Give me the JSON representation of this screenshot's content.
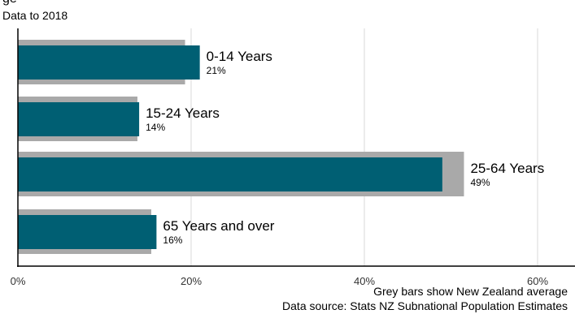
{
  "header": {
    "title_cropped": "ge",
    "subtitle": "Data to 2018"
  },
  "footer": {
    "note": "Grey bars show New Zealand average",
    "source": "Data source: Stats NZ Subnational Population Estimates"
  },
  "colors": {
    "region_bar": "#005f73",
    "nz_bar": "#a9a9a9",
    "grid": "#e6e6e6",
    "axis": "#000000"
  },
  "chart_data": {
    "type": "bar",
    "orientation": "horizontal",
    "subtitle": "Data to 2018",
    "categories": [
      "0-14 Years",
      "15-24 Years",
      "25-64 Years",
      "65 Years and over"
    ],
    "series": [
      {
        "values": [
          0.21,
          0.14,
          0.49,
          0.16
        ],
        "value_labels": [
          "21%",
          "14%",
          "49%",
          "16%"
        ]
      },
      {
        "name": "New Zealand average",
        "values": [
          0.193,
          0.138,
          0.515,
          0.154
        ]
      }
    ],
    "xlim": [
      0,
      0.64
    ],
    "xticks": [
      0,
      0.2,
      0.4,
      0.6
    ],
    "xtick_labels": [
      "0%",
      "20%",
      "40%",
      "60%"
    ],
    "grid": true,
    "annotations": [
      "Grey bars show New Zealand average",
      "Data source: Stats NZ Subnational Population Estimates"
    ]
  }
}
